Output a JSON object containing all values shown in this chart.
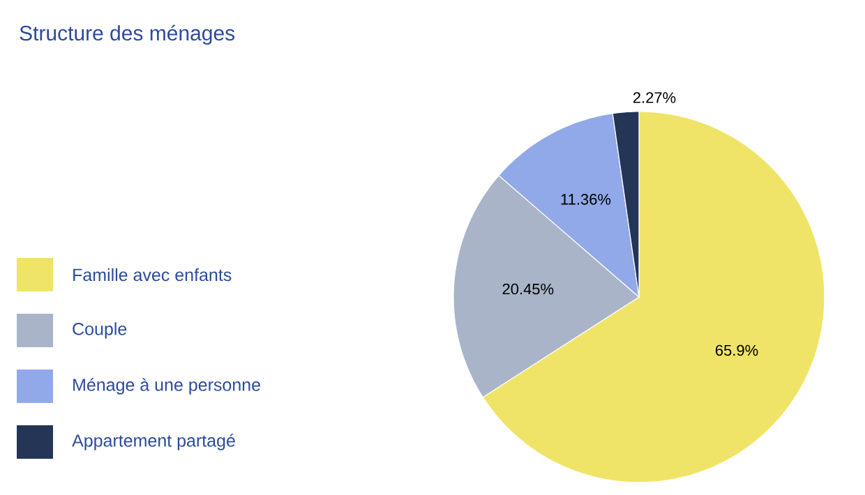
{
  "chart_data": {
    "type": "pie",
    "title": "Structure des ménages",
    "categories": [
      "Famille avec enfants",
      "Couple",
      "Ménage à une personne",
      "Appartement partagé"
    ],
    "values": [
      65.9,
      20.45,
      11.36,
      2.27
    ],
    "value_labels": [
      "65.9%",
      "20.45%",
      "11.36%",
      "2.27%"
    ],
    "colors": [
      "#f0e468",
      "#a9b4c9",
      "#91a9e9",
      "#243556"
    ],
    "legend": "left"
  }
}
